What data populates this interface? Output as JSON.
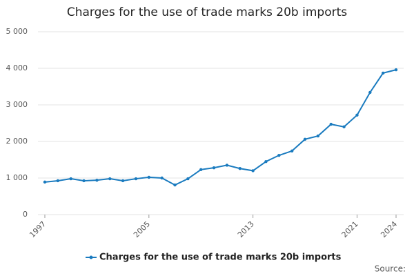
{
  "chart_data": {
    "type": "line",
    "title": "Charges for the use of trade marks 20b imports",
    "x": [
      1997,
      1998,
      1999,
      2000,
      2001,
      2002,
      2003,
      2004,
      2005,
      2006,
      2007,
      2008,
      2009,
      2010,
      2011,
      2012,
      2013,
      2014,
      2015,
      2016,
      2017,
      2018,
      2019,
      2020,
      2021,
      2022,
      2023,
      2024
    ],
    "series": [
      {
        "name": "Charges for the use of trade marks 20b imports",
        "color": "#1a7bbf",
        "values": [
          890,
          925,
          980,
          925,
          940,
          980,
          925,
          980,
          1020,
          1000,
          810,
          980,
          1230,
          1280,
          1350,
          1260,
          1200,
          1450,
          1620,
          1740,
          2060,
          2150,
          2470,
          2400,
          2720,
          3340,
          3870,
          3960
        ]
      }
    ],
    "xlim": [
      1997,
      2024
    ],
    "xticks": [
      1997,
      2005,
      2013,
      2021,
      2024
    ],
    "ylim": [
      0,
      5000
    ],
    "yticks": [
      0,
      {
        "value": 1000,
        "label": "1 000"
      },
      {
        "value": 2000,
        "label": "2 000"
      },
      {
        "value": 3000,
        "label": "3 000"
      },
      {
        "value": 4000,
        "label": "4 000"
      },
      {
        "value": 5000,
        "label": "5 000"
      }
    ],
    "grid": true,
    "legend": "bottom",
    "source": "Source:"
  }
}
